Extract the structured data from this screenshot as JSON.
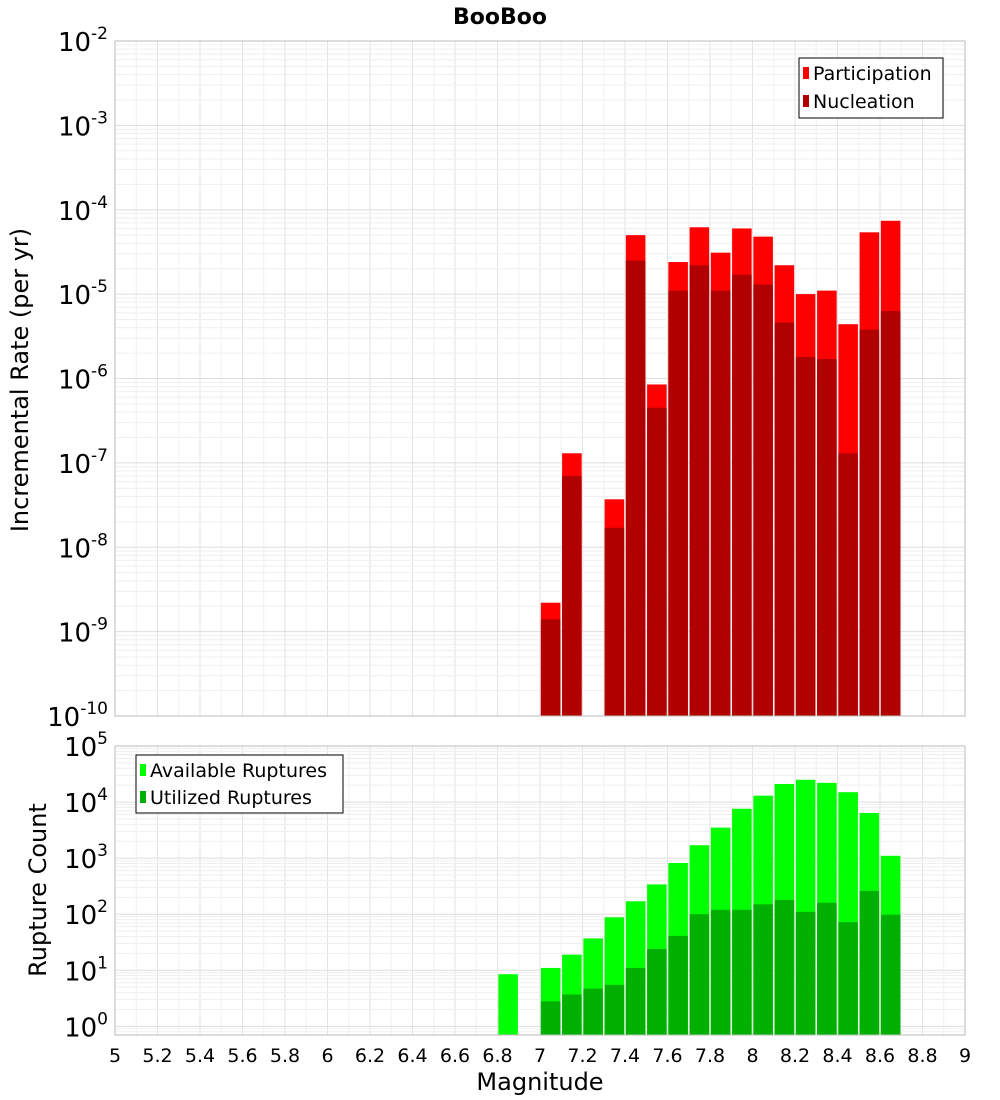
{
  "chart_data": [
    {
      "type": "bar",
      "title": "BooBoo",
      "xlabel": "",
      "ylabel": "Incremental Rate (per yr)",
      "xlim": [
        5,
        9
      ],
      "ylim": [
        1e-10,
        0.01
      ],
      "yscale": "log",
      "grid": true,
      "legend_position": "top-right",
      "y_tick_exponents": [
        -10,
        -9,
        -8,
        -7,
        -6,
        -5,
        -4,
        -3,
        -2
      ],
      "x": [
        7.05,
        7.15,
        7.35,
        7.45,
        7.55,
        7.65,
        7.75,
        7.85,
        7.95,
        8.05,
        8.15,
        8.25,
        8.35,
        8.45,
        8.55,
        8.65
      ],
      "series": [
        {
          "name": "Participation",
          "color": "#ff0000",
          "values": [
            2.2e-09,
            1.3e-07,
            3.7e-08,
            5e-05,
            8.5e-07,
            2.4e-05,
            6.2e-05,
            3.1e-05,
            6e-05,
            4.8e-05,
            2.2e-05,
            1e-05,
            1.1e-05,
            4.4e-06,
            5.4e-05,
            7.4e-05
          ]
        },
        {
          "name": "Nucleation",
          "color": "#b00000",
          "values": [
            1.4e-09,
            7e-08,
            1.7e-08,
            2.5e-05,
            4.5e-07,
            1.1e-05,
            2.2e-05,
            1.1e-05,
            1.7e-05,
            1.3e-05,
            4.6e-06,
            1.8e-06,
            1.7e-06,
            1.3e-07,
            3.8e-06,
            6.3e-06
          ]
        }
      ]
    },
    {
      "type": "bar",
      "title": "",
      "xlabel": "Magnitude",
      "ylabel": "Rupture Count",
      "xlim": [
        5,
        9
      ],
      "ylim": [
        0.7,
        100000.0
      ],
      "yscale": "log",
      "grid": true,
      "legend_position": "top-left",
      "y_tick_exponents": [
        0,
        1,
        2,
        3,
        4,
        5
      ],
      "x_ticks": [
        "5",
        "5.2",
        "5.4",
        "5.6",
        "5.8",
        "6",
        "6.2",
        "6.4",
        "6.6",
        "6.8",
        "7",
        "7.2",
        "7.4",
        "7.6",
        "7.8",
        "8",
        "8.2",
        "8.4",
        "8.6",
        "8.8",
        "9"
      ],
      "x": [
        6.85,
        7.05,
        7.15,
        7.25,
        7.35,
        7.45,
        7.55,
        7.65,
        7.75,
        7.85,
        7.95,
        8.05,
        8.15,
        8.25,
        8.35,
        8.45,
        8.55,
        8.65
      ],
      "series": [
        {
          "name": "Available Ruptures",
          "color": "#00ff00",
          "values": [
            8.5,
            11,
            19,
            37,
            88,
            170,
            340,
            820,
            1700,
            3500,
            7600,
            13000,
            21000,
            25000,
            22000,
            15000,
            6400,
            1100
          ]
        },
        {
          "name": "Utilized Ruptures",
          "color": "#00b000",
          "values": [
            null,
            2.8,
            3.7,
            4.7,
            5.5,
            11,
            24,
            41,
            100,
            120,
            120,
            150,
            180,
            110,
            160,
            72,
            260,
            98
          ]
        }
      ]
    }
  ]
}
